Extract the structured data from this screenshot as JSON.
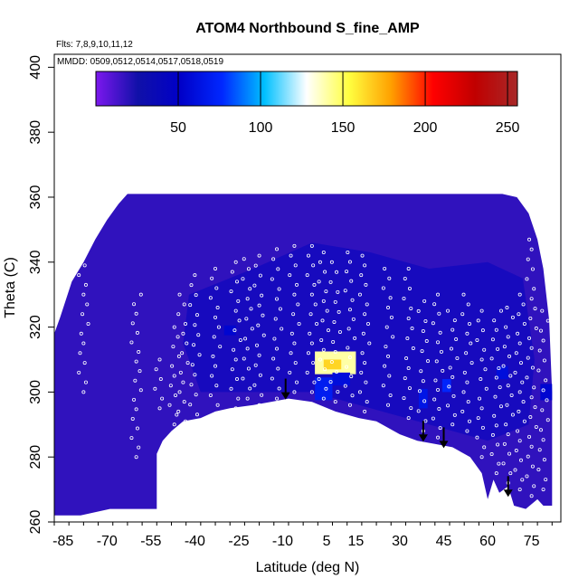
{
  "chart_data": {
    "type": "heatmap",
    "title": "ATOM4 Northbound S_fine_AMP",
    "annotations": {
      "flights": "Flts: 7,8,9,10,11,12",
      "dates": "MMDD: 0509,0512,0514,0517,0518,0519"
    },
    "xlabel": "Latitude (deg N)",
    "ylabel": "Theta (C)",
    "xlim": [
      -88,
      85
    ],
    "ylim": [
      260,
      404
    ],
    "x_ticks": [
      -85,
      -70,
      -55,
      -40,
      -25,
      -10,
      5,
      15,
      30,
      45,
      60,
      75
    ],
    "y_ticks": [
      260,
      280,
      300,
      320,
      340,
      360,
      380,
      400
    ],
    "colorbar": {
      "range": [
        0,
        256
      ],
      "ticks": [
        50,
        100,
        150,
        200,
        250
      ],
      "colors": [
        "#7c18ee",
        "#1010a8",
        "#0000c8",
        "#0028ff",
        "#00c0ff",
        "#ffffff",
        "#ffff40",
        "#ffa000",
        "#ff0000",
        "#c00000",
        "#a82828"
      ]
    },
    "field": {
      "background_value": 18,
      "upper_boundary": [
        [
          -88,
          318
        ],
        [
          -86,
          323
        ],
        [
          -82,
          334
        ],
        [
          -78,
          340
        ],
        [
          -74,
          347
        ],
        [
          -70,
          353
        ],
        [
          -66,
          358
        ],
        [
          -63,
          361
        ],
        [
          -55,
          361
        ],
        [
          -40,
          361
        ],
        [
          -25,
          361
        ],
        [
          -10,
          361
        ],
        [
          5,
          361
        ],
        [
          20,
          361
        ],
        [
          35,
          361
        ],
        [
          45,
          361
        ],
        [
          55,
          361
        ],
        [
          65,
          361
        ],
        [
          70,
          360
        ],
        [
          74,
          355
        ],
        [
          77,
          347
        ],
        [
          79,
          338
        ],
        [
          81,
          322
        ],
        [
          82,
          300
        ],
        [
          82,
          266
        ]
      ],
      "lower_boundary": [
        [
          -88,
          262
        ],
        [
          -79,
          262
        ],
        [
          -69,
          264
        ],
        [
          -53,
          264
        ],
        [
          -53,
          281
        ],
        [
          -51,
          285
        ],
        [
          -48,
          288
        ],
        [
          -44,
          291
        ],
        [
          -38,
          292
        ],
        [
          -33,
          294
        ],
        [
          -28,
          295
        ],
        [
          -20,
          296
        ],
        [
          -14,
          297
        ],
        [
          -8,
          298
        ],
        [
          0,
          297
        ],
        [
          8,
          294
        ],
        [
          16,
          292
        ],
        [
          22,
          291
        ],
        [
          30,
          287
        ],
        [
          36,
          285
        ],
        [
          42,
          284
        ],
        [
          48,
          283
        ],
        [
          54,
          280
        ],
        [
          58,
          275
        ],
        [
          60,
          267
        ],
        [
          62,
          273
        ],
        [
          64,
          269
        ],
        [
          67,
          271
        ],
        [
          69,
          265
        ],
        [
          73,
          264
        ],
        [
          77,
          267
        ],
        [
          79,
          265
        ],
        [
          82,
          265
        ]
      ],
      "hotspots": [
        {
          "lat": 8,
          "theta": 309,
          "w": 14,
          "h": 7,
          "value": 140
        },
        {
          "lat": 7,
          "theta": 308.5,
          "w": 6,
          "h": 3,
          "value": 165
        },
        {
          "lat": 4,
          "theta": 301,
          "w": 6,
          "h": 7,
          "value": 70
        },
        {
          "lat": 10,
          "theta": 304,
          "w": 6,
          "h": 4,
          "value": 60
        },
        {
          "lat": -28,
          "theta": 319,
          "w": 4,
          "h": 3,
          "value": 55
        },
        {
          "lat": 38,
          "theta": 298,
          "w": 3,
          "h": 6,
          "value": 65
        },
        {
          "lat": 46,
          "theta": 302,
          "w": 3,
          "h": 4,
          "value": 75
        },
        {
          "lat": 65,
          "theta": 306,
          "w": 4,
          "h": 4,
          "value": 60
        },
        {
          "lat": 80,
          "theta": 300,
          "w": 4,
          "h": 5,
          "value": 55
        }
      ],
      "dark_band_value": 45
    },
    "profiles": [
      {
        "lat": -78,
        "theta": [
          300,
          345
        ]
      },
      {
        "lat": -60,
        "theta": [
          280,
          330
        ]
      },
      {
        "lat": -52,
        "theta": [
          295,
          310
        ]
      },
      {
        "lat": -47,
        "theta": [
          290,
          320
        ]
      },
      {
        "lat": -44,
        "theta": [
          288,
          330
        ]
      },
      {
        "lat": -40,
        "theta": [
          290,
          336
        ]
      },
      {
        "lat": -33,
        "theta": [
          293,
          338
        ]
      },
      {
        "lat": -26,
        "theta": [
          295,
          340
        ]
      },
      {
        "lat": -22,
        "theta": [
          298,
          341
        ]
      },
      {
        "lat": -18,
        "theta": [
          296,
          342
        ]
      },
      {
        "lat": -12,
        "theta": [
          298,
          344
        ]
      },
      {
        "lat": -6,
        "theta": [
          300,
          345
        ]
      },
      {
        "lat": 0,
        "theta": [
          300,
          345
        ]
      },
      {
        "lat": 4,
        "theta": [
          298,
          343
        ]
      },
      {
        "lat": 8,
        "theta": [
          297,
          340
        ]
      },
      {
        "lat": 13,
        "theta": [
          296,
          343
        ]
      },
      {
        "lat": 18,
        "theta": [
          294,
          342
        ]
      },
      {
        "lat": 26,
        "theta": [
          296,
          338
        ]
      },
      {
        "lat": 33,
        "theta": [
          292,
          338
        ]
      },
      {
        "lat": 38,
        "theta": [
          288,
          328
        ]
      },
      {
        "lat": 43,
        "theta": [
          286,
          330
        ]
      },
      {
        "lat": 48,
        "theta": [
          290,
          325
        ]
      },
      {
        "lat": 53,
        "theta": [
          288,
          330
        ]
      },
      {
        "lat": 58,
        "theta": [
          280,
          325
        ]
      },
      {
        "lat": 63,
        "theta": [
          275,
          325
        ]
      },
      {
        "lat": 67,
        "theta": [
          272,
          326
        ]
      },
      {
        "lat": 71,
        "theta": [
          270,
          330
        ]
      },
      {
        "lat": 75,
        "theta": [
          268,
          350
        ]
      },
      {
        "lat": 79,
        "theta": [
          270,
          325
        ]
      }
    ],
    "arrows": [
      {
        "lat": -9,
        "theta": 298
      },
      {
        "lat": 38,
        "theta": 285
      },
      {
        "lat": 45,
        "theta": 283
      },
      {
        "lat": 67,
        "theta": 268
      }
    ]
  }
}
